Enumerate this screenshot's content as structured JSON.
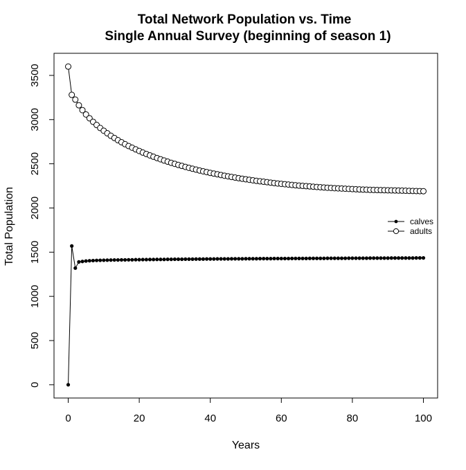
{
  "chart_data": {
    "type": "line",
    "title": "Total Network Population vs. Time",
    "subtitle": "Single Annual Survey (beginning of season 1)",
    "xlabel": "Years",
    "ylabel": "Total Population",
    "xlim": [
      -4,
      104
    ],
    "ylim": [
      -150,
      3750
    ],
    "x_ticks": [
      0,
      20,
      40,
      60,
      80,
      100
    ],
    "y_ticks": [
      0,
      500,
      1000,
      1500,
      2000,
      2500,
      3000,
      3500
    ],
    "grid": false,
    "legend_position": "right",
    "x": [
      0,
      1,
      2,
      3,
      4,
      5,
      6,
      7,
      8,
      9,
      10,
      11,
      12,
      13,
      14,
      15,
      16,
      17,
      18,
      19,
      20,
      21,
      22,
      23,
      24,
      25,
      26,
      27,
      28,
      29,
      30,
      31,
      32,
      33,
      34,
      35,
      36,
      37,
      38,
      39,
      40,
      41,
      42,
      43,
      44,
      45,
      46,
      47,
      48,
      49,
      50,
      51,
      52,
      53,
      54,
      55,
      56,
      57,
      58,
      59,
      60,
      61,
      62,
      63,
      64,
      65,
      66,
      67,
      68,
      69,
      70,
      71,
      72,
      73,
      74,
      75,
      76,
      77,
      78,
      79,
      80,
      81,
      82,
      83,
      84,
      85,
      86,
      87,
      88,
      89,
      90,
      91,
      92,
      93,
      94,
      95,
      96,
      97,
      98,
      99,
      100
    ],
    "series": [
      {
        "name": "calves",
        "marker": "filled-circle",
        "values": [
          0,
          1570,
          1320,
          1390,
          1395,
          1400,
          1403,
          1405,
          1407,
          1408,
          1409,
          1410,
          1411,
          1412,
          1412,
          1413,
          1413,
          1414,
          1414,
          1415,
          1415,
          1416,
          1416,
          1417,
          1417,
          1418,
          1418,
          1418,
          1419,
          1419,
          1420,
          1420,
          1420,
          1421,
          1421,
          1421,
          1422,
          1422,
          1422,
          1423,
          1423,
          1423,
          1424,
          1424,
          1424,
          1424,
          1425,
          1425,
          1425,
          1425,
          1426,
          1426,
          1426,
          1426,
          1427,
          1427,
          1427,
          1427,
          1428,
          1428,
          1428,
          1428,
          1428,
          1429,
          1429,
          1429,
          1429,
          1429,
          1430,
          1430,
          1430,
          1430,
          1430,
          1431,
          1431,
          1431,
          1431,
          1431,
          1431,
          1432,
          1432,
          1432,
          1432,
          1432,
          1432,
          1433,
          1433,
          1433,
          1433,
          1433,
          1433,
          1434,
          1434,
          1434,
          1434,
          1434,
          1434,
          1434,
          1435,
          1435,
          1435
        ]
      },
      {
        "name": "adults",
        "marker": "open-circle",
        "values": [
          3600,
          3280,
          3226,
          3162,
          3107,
          3058,
          3015,
          2975,
          2939,
          2905,
          2874,
          2845,
          2817,
          2792,
          2767,
          2744,
          2722,
          2701,
          2682,
          2663,
          2645,
          2627,
          2611,
          2595,
          2580,
          2565,
          2551,
          2537,
          2524,
          2511,
          2499,
          2487,
          2476,
          2465,
          2454,
          2444,
          2434,
          2424,
          2415,
          2406,
          2397,
          2389,
          2381,
          2373,
          2365,
          2358,
          2351,
          2344,
          2337,
          2331,
          2325,
          2319,
          2313,
          2307,
          2302,
          2297,
          2292,
          2287,
          2282,
          2277,
          2273,
          2269,
          2265,
          2261,
          2257,
          2253,
          2250,
          2247,
          2244,
          2241,
          2238,
          2235,
          2232,
          2229,
          2227,
          2224,
          2222,
          2220,
          2218,
          2216,
          2214,
          2212,
          2210,
          2208,
          2207,
          2205,
          2204,
          2203,
          2202,
          2201,
          2200,
          2199,
          2198,
          2197,
          2196,
          2195,
          2194,
          2193,
          2192,
          2191,
          2190
        ]
      }
    ]
  }
}
